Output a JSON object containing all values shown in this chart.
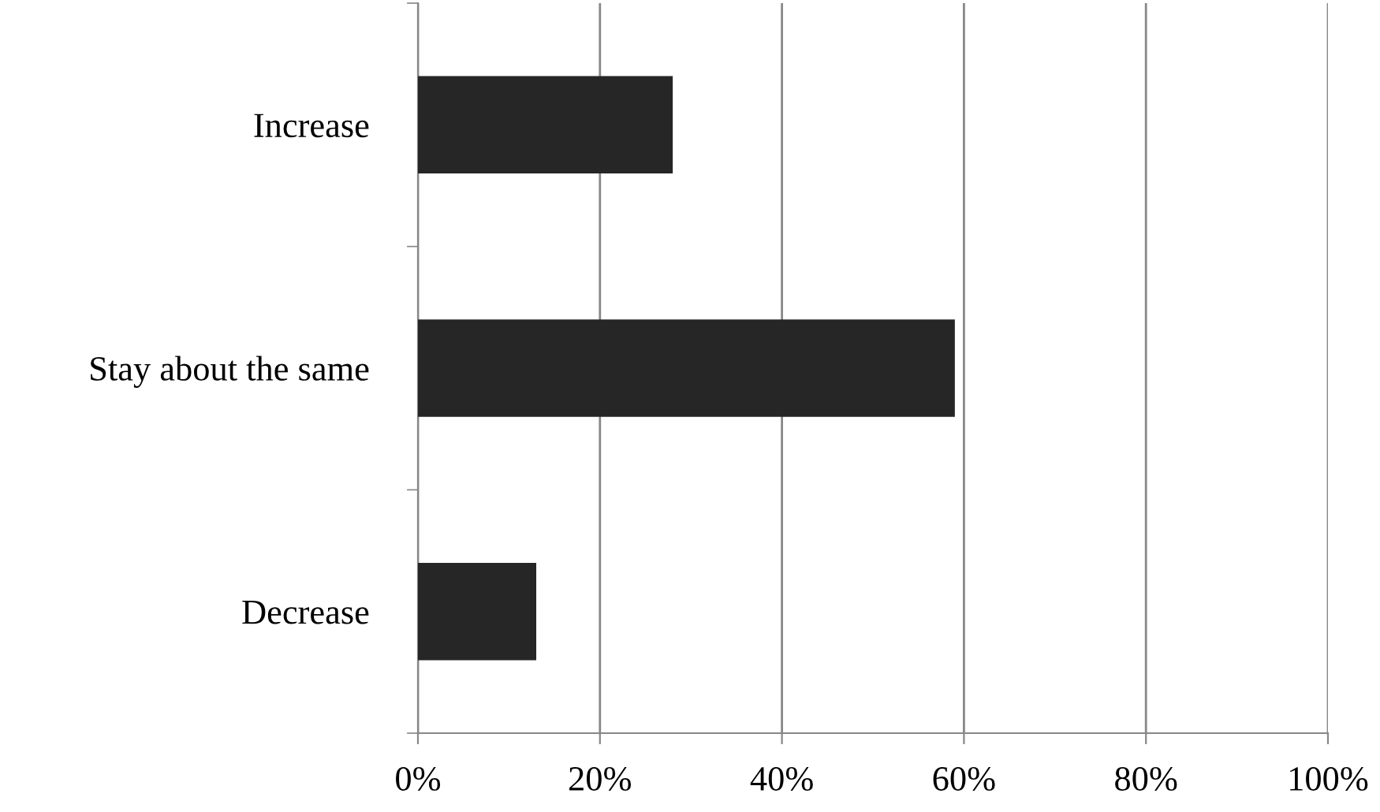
{
  "chart_data": {
    "type": "bar",
    "orientation": "horizontal",
    "categories": [
      "Increase",
      "Stay about the same",
      "Decrease"
    ],
    "values": [
      28,
      59,
      13
    ],
    "color": "#262626",
    "xlim": [
      0,
      100
    ],
    "xticks": [
      {
        "value": 0,
        "label": "0%"
      },
      {
        "value": 20,
        "label": "20%"
      },
      {
        "value": 40,
        "label": "40%"
      },
      {
        "value": 60,
        "label": "60%"
      },
      {
        "value": 80,
        "label": "80%"
      },
      {
        "value": 100,
        "label": "100%"
      }
    ],
    "grid": "x",
    "legend": false
  }
}
